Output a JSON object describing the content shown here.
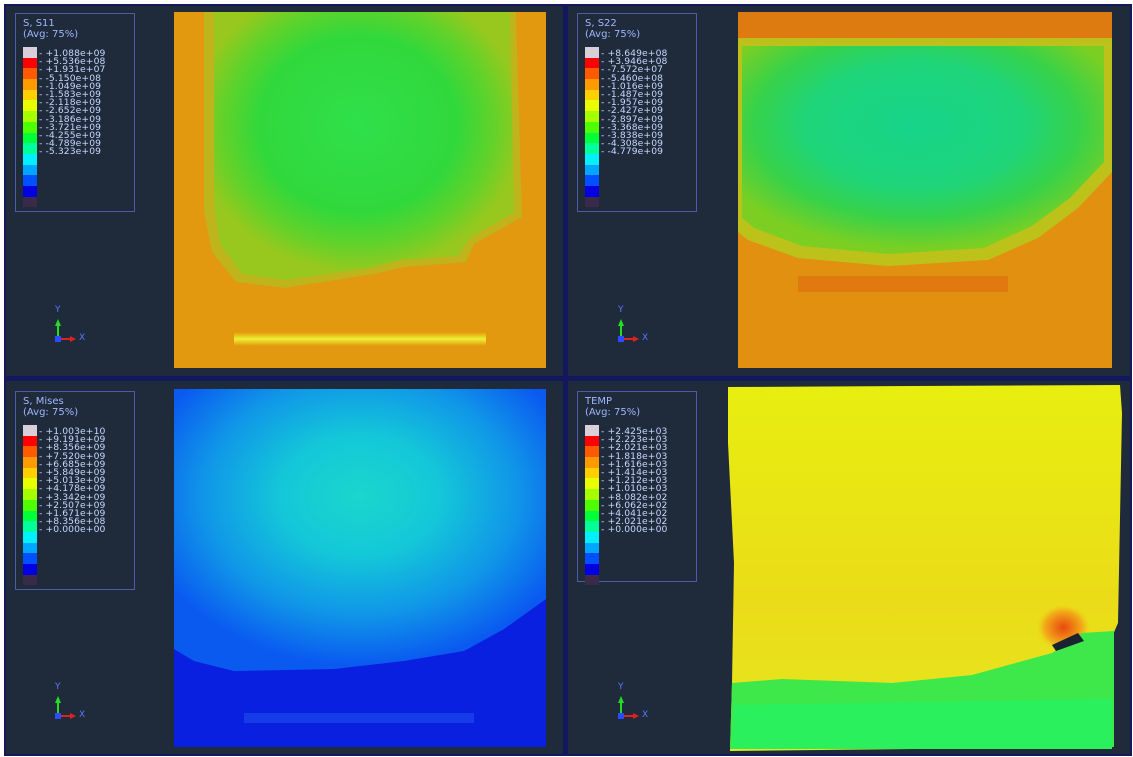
{
  "viewports": [
    {
      "legend": {
        "title_line1": "S, S11",
        "title_line2": "(Avg: 75%)",
        "ticks": [
          "+1.088e+09",
          "+5.536e+08",
          "+1.931e+07",
          "-5.150e+08",
          "-1.049e+09",
          "-1.583e+09",
          "-2.118e+09",
          "-2.652e+09",
          "-3.186e+09",
          "-3.721e+09",
          "-4.255e+09",
          "-4.789e+09",
          "-5.323e+09"
        ]
      },
      "triad": {
        "y_label": "Y",
        "x_label": "X"
      }
    },
    {
      "legend": {
        "title_line1": "S, S22",
        "title_line2": "(Avg: 75%)",
        "ticks": [
          "+8.649e+08",
          "+3.946e+08",
          "-7.572e+07",
          "-5.460e+08",
          "-1.016e+09",
          "-1.487e+09",
          "-1.957e+09",
          "-2.427e+09",
          "-2.897e+09",
          "-3.368e+09",
          "-3.838e+09",
          "-4.308e+09",
          "-4.779e+09"
        ]
      },
      "triad": {
        "y_label": "Y",
        "x_label": "X"
      }
    },
    {
      "legend": {
        "title_line1": "S, Mises",
        "title_line2": "(Avg: 75%)",
        "ticks": [
          "+1.003e+10",
          "+9.191e+09",
          "+8.356e+09",
          "+7.520e+09",
          "+6.685e+09",
          "+5.849e+09",
          "+5.013e+09",
          "+4.178e+09",
          "+3.342e+09",
          "+2.507e+09",
          "+1.671e+09",
          "+8.356e+08",
          "+0.000e+00"
        ]
      },
      "triad": {
        "y_label": "Y",
        "x_label": "X"
      }
    },
    {
      "legend": {
        "title_line1": "TEMP",
        "title_line2": "(Avg: 75%)",
        "ticks": [
          "+2.425e+03",
          "+2.223e+03",
          "+2.021e+03",
          "+1.818e+03",
          "+1.616e+03",
          "+1.414e+03",
          "+1.212e+03",
          "+1.010e+03",
          "+8.082e+02",
          "+6.062e+02",
          "+4.041e+02",
          "+2.021e+02",
          "+0.000e+00"
        ]
      },
      "triad": {
        "y_label": "Y",
        "x_label": "X"
      }
    }
  ],
  "colors": {
    "background": "#1f2a3b",
    "divider": "#13175e",
    "legend_text": "#c8d8ff",
    "legend_title": "#9fb7ff",
    "contour_scale": [
      "#d8cfd8",
      "#ff0000",
      "#ff5a00",
      "#ff9a00",
      "#ffd000",
      "#e8ff00",
      "#a6ff00",
      "#4dff00",
      "#00ff3a",
      "#00ff9a",
      "#00f0ff",
      "#00a6ff",
      "#0050ff",
      "#0000e0",
      "#3a2a4a"
    ]
  }
}
